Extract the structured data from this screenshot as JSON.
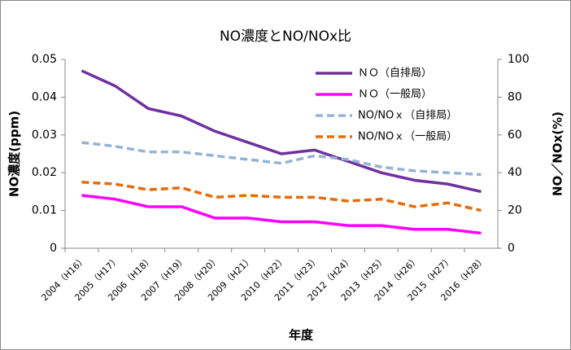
{
  "chart_data": {
    "type": "line",
    "title": "NO濃度とNO/NOx比",
    "x_label": "年度",
    "y_label": "NO濃度(ppm)",
    "y2_label": "NO／NOx(%)",
    "categories": [
      "2004（H16）",
      "2005（H17）",
      "2006（H18）",
      "2007（H19）",
      "2008（H20）",
      "2009（H21）",
      "2010（H22）",
      "2011（H23）",
      "2012（H24）",
      "2013（H25）",
      "2014（H26）",
      "2015（H27）",
      "2016（H28）"
    ],
    "series": [
      {
        "name": "ＮＯ（自排局）",
        "color": "#7030a0",
        "style": "solid",
        "axis": "y",
        "values": [
          0.047,
          0.043,
          0.037,
          0.035,
          0.031,
          0.028,
          0.025,
          0.026,
          0.023,
          0.02,
          0.018,
          0.017,
          0.015
        ]
      },
      {
        "name": "ＮＯ（一般局）",
        "color": "#ff00ff",
        "style": "solid",
        "axis": "y",
        "values": [
          0.014,
          0.013,
          0.011,
          0.011,
          0.008,
          0.008,
          0.007,
          0.007,
          0.006,
          0.006,
          0.005,
          0.005,
          0.004
        ]
      },
      {
        "name": "NO/NOｘ（自排局）",
        "color": "#95b3d7",
        "style": "dashed",
        "axis": "y2",
        "values": [
          56,
          54,
          51,
          51,
          49,
          47,
          45,
          49,
          47,
          43,
          41,
          40,
          39
        ]
      },
      {
        "name": "NO/NOｘ（一般局）",
        "color": "#e46c0a",
        "style": "dashed",
        "axis": "y2",
        "values": [
          35,
          34,
          31,
          32,
          27,
          28,
          27,
          27,
          25,
          26,
          22,
          24,
          20
        ]
      }
    ],
    "ylim": [
      0,
      0.05
    ],
    "yticks": [
      0,
      0.01,
      0.02,
      0.03,
      0.04,
      0.05
    ],
    "y2lim": [
      0,
      100
    ],
    "y2ticks": [
      0,
      20,
      40,
      60,
      80,
      100
    ],
    "grid": false,
    "legend": "upper right"
  }
}
